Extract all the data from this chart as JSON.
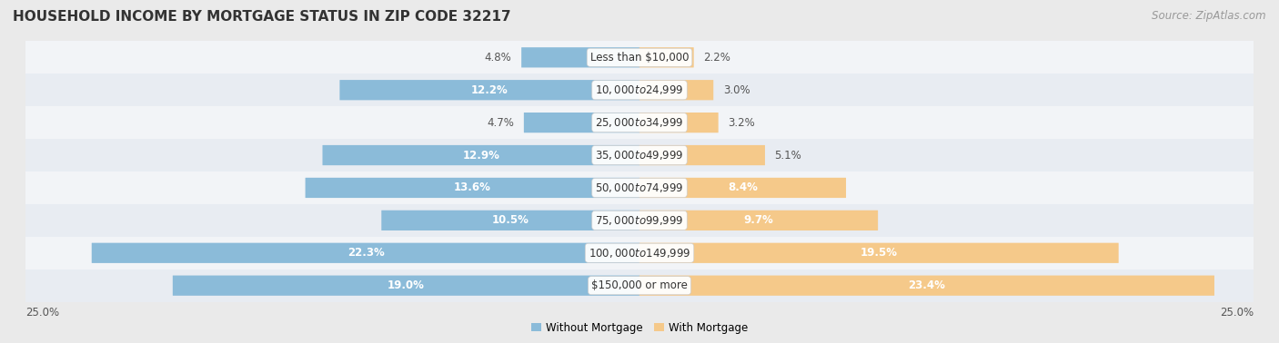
{
  "title": "HOUSEHOLD INCOME BY MORTGAGE STATUS IN ZIP CODE 32217",
  "source": "Source: ZipAtlas.com",
  "categories": [
    "Less than $10,000",
    "$10,000 to $24,999",
    "$25,000 to $34,999",
    "$35,000 to $49,999",
    "$50,000 to $74,999",
    "$75,000 to $99,999",
    "$100,000 to $149,999",
    "$150,000 or more"
  ],
  "without_mortgage": [
    4.8,
    12.2,
    4.7,
    12.9,
    13.6,
    10.5,
    22.3,
    19.0
  ],
  "with_mortgage": [
    2.2,
    3.0,
    3.2,
    5.1,
    8.4,
    9.7,
    19.5,
    23.4
  ],
  "color_without": "#8bbbd9",
  "color_with": "#f5c98a",
  "bg_color": "#eaeaea",
  "row_bg_colors": [
    "#f2f4f7",
    "#e8ecf2"
  ],
  "max_val": 25.0,
  "axis_label": "25.0%",
  "legend_without": "Without Mortgage",
  "legend_with": "With Mortgage",
  "title_fontsize": 11,
  "source_fontsize": 8.5,
  "pct_fontsize": 8.5,
  "cat_fontsize": 8.5,
  "wo_label_threshold": 6.0,
  "wi_label_threshold": 6.0
}
